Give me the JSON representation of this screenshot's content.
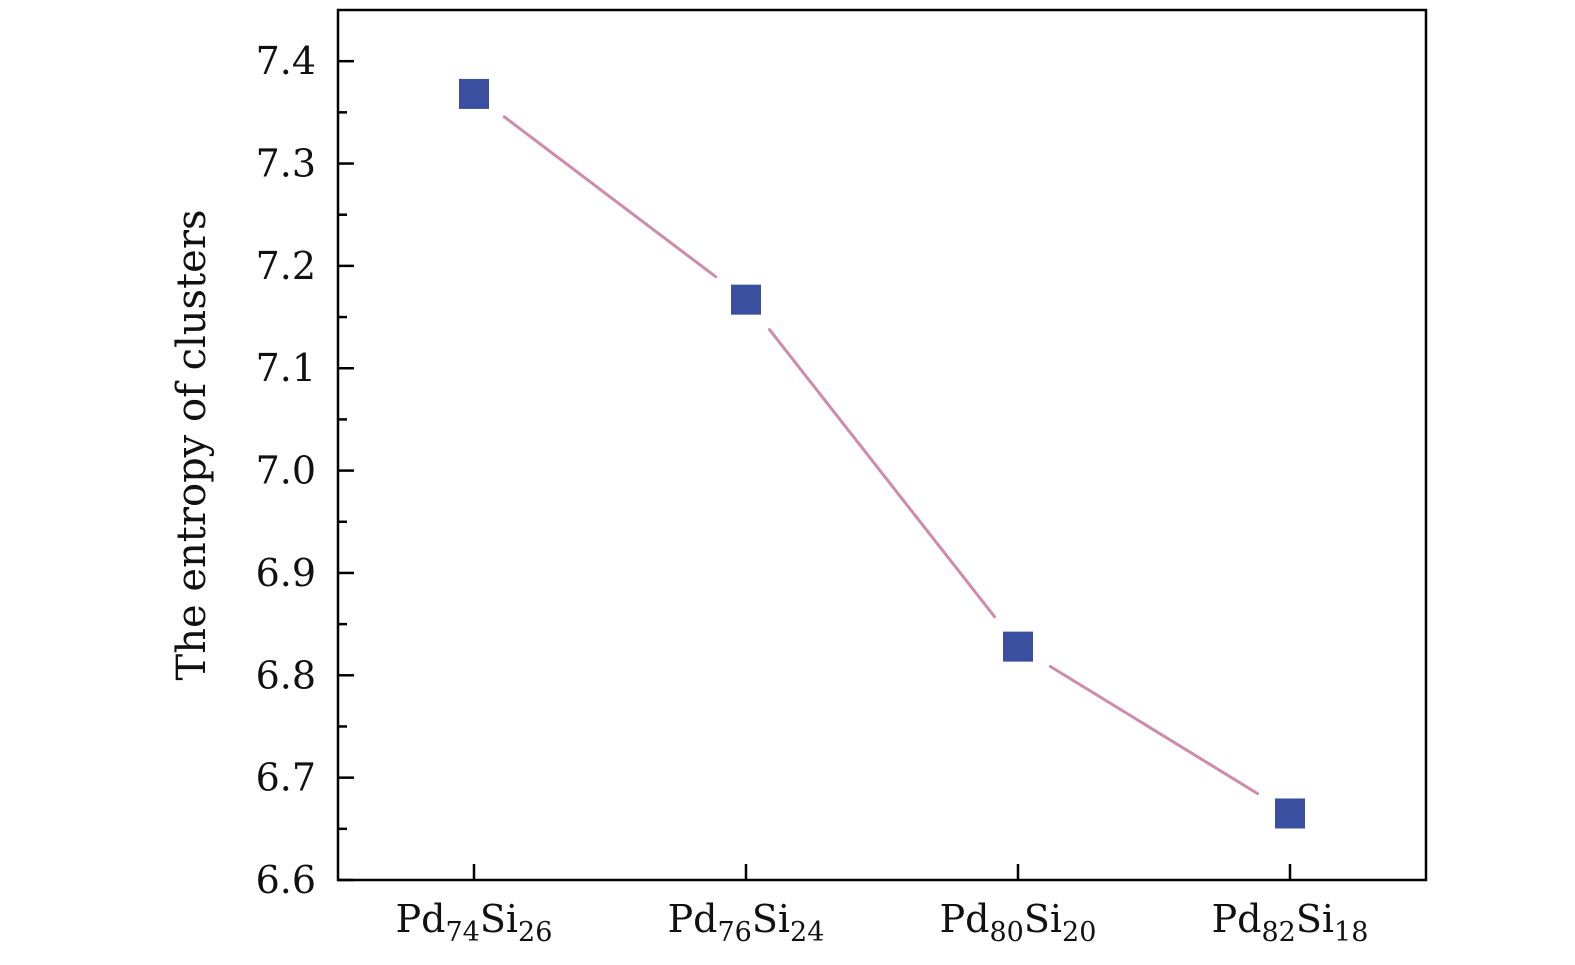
{
  "chart_data": {
    "type": "line",
    "title": "",
    "xlabel": "",
    "ylabel": "The entropy of  clusters",
    "ylim": [
      6.6,
      7.45
    ],
    "yticks": [
      "6.6",
      "6.7",
      "6.8",
      "6.9",
      "7.0",
      "7.1",
      "7.2",
      "7.3",
      "7.4"
    ],
    "categories": [
      {
        "base1": "Pd",
        "sub1": "74",
        "base2": "Si",
        "sub2": "26"
      },
      {
        "base1": "Pd",
        "sub1": "76",
        "base2": "Si",
        "sub2": "24"
      },
      {
        "base1": "Pd",
        "sub1": "80",
        "base2": "Si",
        "sub2": "20"
      },
      {
        "base1": "Pd",
        "sub1": "82",
        "base2": "Si",
        "sub2": "18"
      }
    ],
    "values": [
      7.368,
      7.167,
      6.828,
      6.665
    ],
    "colors": {
      "marker": "#3a4fa0",
      "line": "#d08aab",
      "axis": "#000000"
    },
    "marker": "square",
    "grid": false,
    "legend": "none"
  }
}
